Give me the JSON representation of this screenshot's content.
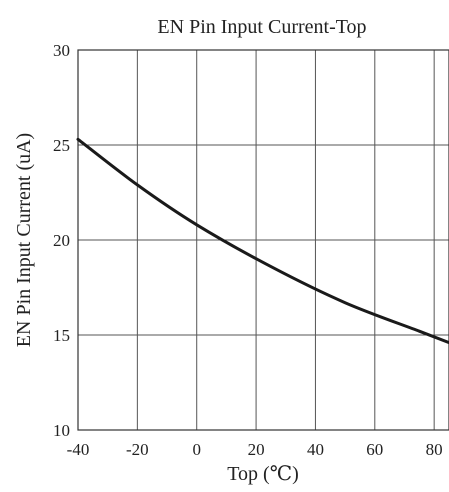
{
  "chart_data": {
    "type": "line",
    "title": "EN Pin Input Current-Top",
    "xlabel": "Top (℃)",
    "ylabel": "EN Pin Input Current (uA)",
    "xlim": [
      -40,
      85
    ],
    "ylim": [
      10,
      30
    ],
    "xticks": [
      -40,
      -20,
      0,
      20,
      40,
      60,
      80
    ],
    "yticks": [
      10,
      15,
      20,
      25,
      30
    ],
    "grid": true,
    "series": [
      {
        "x": [
          -40,
          -20,
          0,
          25,
          50,
          75,
          85
        ],
        "y": [
          25.3,
          22.9,
          20.8,
          18.6,
          16.7,
          15.2,
          14.6
        ],
        "color": "#1a1a1a"
      }
    ]
  }
}
